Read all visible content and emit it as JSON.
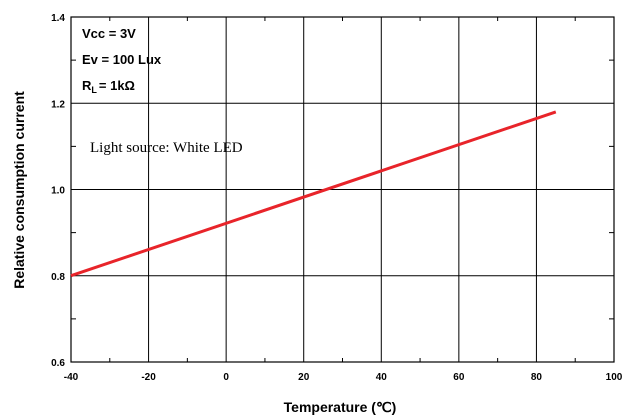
{
  "chart_data": {
    "type": "line",
    "title": "",
    "xlabel": "Temperature (℃)",
    "ylabel": "Relative consumption current",
    "xlim": [
      -40,
      100
    ],
    "ylim": [
      0.6,
      1.4
    ],
    "x_ticks": [
      "-40",
      "-20",
      "0",
      "20",
      "40",
      "60",
      "80",
      "100"
    ],
    "y_ticks": [
      "0.6",
      "0.8",
      "1.0",
      "1.2",
      "1.4"
    ],
    "grid": true,
    "series": [
      {
        "color": "#e8242a",
        "points": [
          [
            -40,
            0.8
          ],
          [
            85,
            1.18
          ]
        ]
      }
    ],
    "conditions": {
      "vcc": "Vcc = 3V",
      "ev": "Ev = 100 Lux",
      "rl_main": "R",
      "rl_sub": "L",
      "rl_value": "= 1kΩ"
    },
    "annotation": "Light source: White LED"
  }
}
